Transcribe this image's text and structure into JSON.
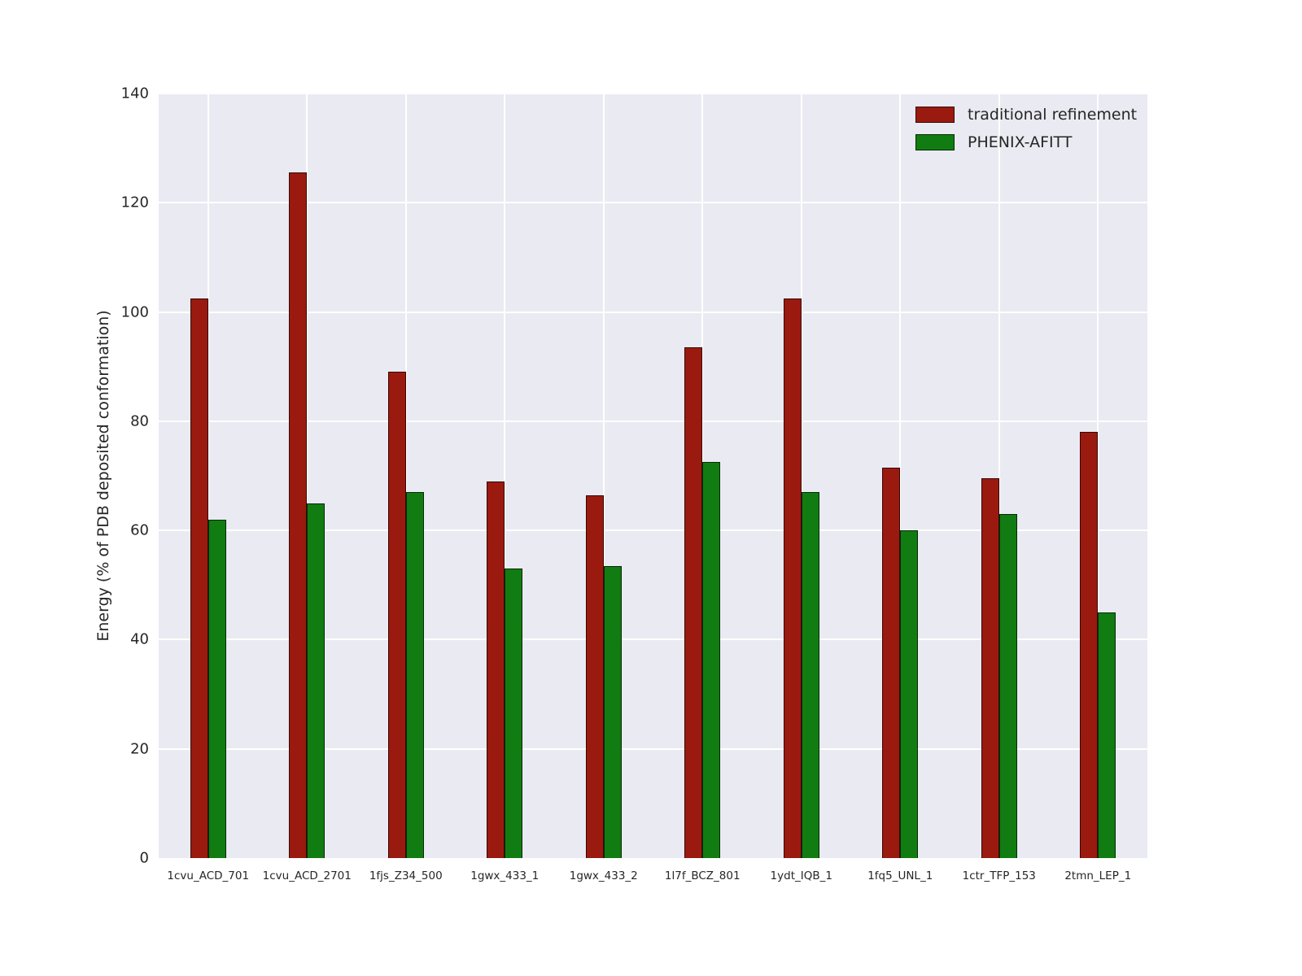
{
  "figure": {
    "background": "#ffffff",
    "plot_background": "#eaeaf2",
    "grid_color": "#ffffff"
  },
  "chart_data": {
    "type": "bar",
    "title": "",
    "xlabel": "",
    "ylabel": "Energy (% of PDB deposited conformation)",
    "ylim": [
      0,
      140
    ],
    "yticks": [
      0,
      20,
      40,
      60,
      80,
      100,
      120,
      140
    ],
    "grid": true,
    "legend_position": "upper right",
    "categories": [
      "1cvu_ACD_701",
      "1cvu_ACD_2701",
      "1fjs_Z34_500",
      "1gwx_433_1",
      "1gwx_433_2",
      "1l7f_BCZ_801",
      "1ydt_IQB_1",
      "1fq5_UNL_1",
      "1ctr_TFP_153",
      "2tmn_LEP_1"
    ],
    "series": [
      {
        "name": "traditional refinement",
        "color": "#9a1a0f",
        "values": [
          102.5,
          125.5,
          89,
          69,
          66.5,
          93.5,
          102.5,
          71.5,
          69.5,
          78
        ]
      },
      {
        "name": "PHENIX-AFITT",
        "color": "#117c11",
        "values": [
          62,
          65,
          67,
          53,
          53.5,
          72.5,
          67,
          60,
          63,
          45
        ]
      }
    ]
  }
}
